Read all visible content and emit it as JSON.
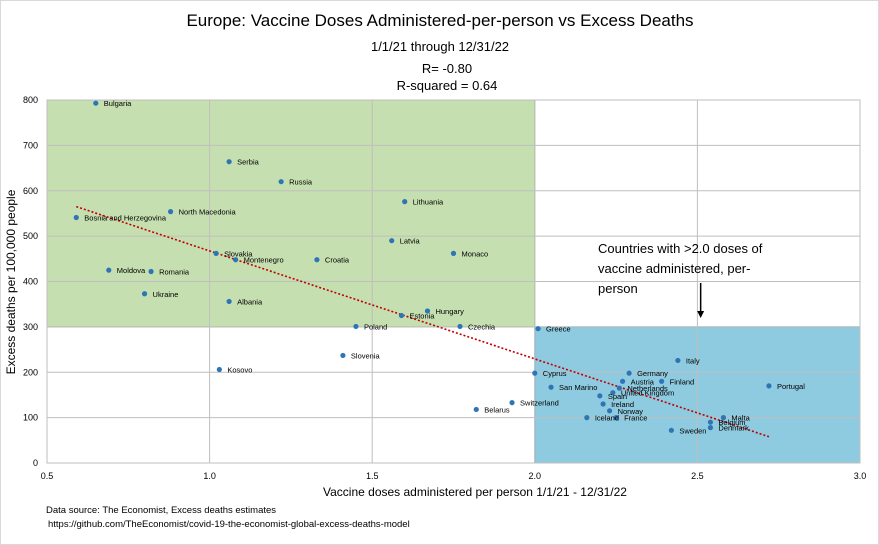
{
  "chart_data": {
    "type": "scatter",
    "title": "Europe: Vaccine Doses Administered-per-person vs Excess Deaths",
    "subtitle": "1/1/21 through 12/31/22",
    "stats": [
      "R= -0.80",
      "R-squared = 0.64"
    ],
    "xlabel": "Vaccine doses administered per person 1/1/21 - 12/31/22",
    "ylabel": "Excess deaths per 100,000 people",
    "xlim": [
      0.5,
      3.0
    ],
    "ylim": [
      0,
      800
    ],
    "xticks": [
      0.5,
      1.0,
      1.5,
      2.0,
      2.5,
      3.0
    ],
    "xtick_labels": [
      "0.5",
      "1.0",
      "1.5",
      "2.0",
      "2.5",
      "3.0"
    ],
    "yticks": [
      0,
      100,
      200,
      300,
      400,
      500,
      600,
      700,
      800
    ],
    "ytick_labels": [
      "0",
      "100",
      "200",
      "300",
      "400",
      "500",
      "600",
      "700",
      "800"
    ],
    "grid": true,
    "regions": [
      {
        "name": "high-deaths-low-vaccine",
        "x": [
          0.5,
          2.0
        ],
        "y": [
          300,
          800
        ],
        "color": "#c6dfb0",
        "border": "#8fb870"
      },
      {
        "name": "high-vaccine",
        "x": [
          2.0,
          3.0
        ],
        "y": [
          0,
          300
        ],
        "color": "#8ecbe0",
        "border": "#4f9ec0"
      }
    ],
    "trendline": {
      "x": [
        0.59,
        2.72
      ],
      "y": [
        565,
        58
      ],
      "color": "#c00000",
      "style": "dotted"
    },
    "marker_color": "#2e75b6",
    "points": [
      {
        "label": "Bulgaria",
        "x": 0.65,
        "y": 793
      },
      {
        "label": "Serbia",
        "x": 1.06,
        "y": 664
      },
      {
        "label": "Russia",
        "x": 1.22,
        "y": 620
      },
      {
        "label": "Lithuania",
        "x": 1.6,
        "y": 576
      },
      {
        "label": "North Macedonia",
        "x": 0.88,
        "y": 554
      },
      {
        "label": "Bosnia and Herzegovina",
        "x": 0.59,
        "y": 541
      },
      {
        "label": "Latvia",
        "x": 1.56,
        "y": 490
      },
      {
        "label": "Slovakia",
        "x": 1.02,
        "y": 462
      },
      {
        "label": "Monaco",
        "x": 1.75,
        "y": 462
      },
      {
        "label": "Montenegro",
        "x": 1.08,
        "y": 448
      },
      {
        "label": "Croatia",
        "x": 1.33,
        "y": 448
      },
      {
        "label": "Moldova",
        "x": 0.69,
        "y": 425
      },
      {
        "label": "Romania",
        "x": 0.82,
        "y": 422
      },
      {
        "label": "Ukraine",
        "x": 0.8,
        "y": 373
      },
      {
        "label": "Albania",
        "x": 1.06,
        "y": 356
      },
      {
        "label": "Hungary",
        "x": 1.67,
        "y": 335
      },
      {
        "label": "Estonia",
        "x": 1.59,
        "y": 325
      },
      {
        "label": "Poland",
        "x": 1.45,
        "y": 301
      },
      {
        "label": "Czechia",
        "x": 1.77,
        "y": 301
      },
      {
        "label": "Greece",
        "x": 2.01,
        "y": 296
      },
      {
        "label": "Slovenia",
        "x": 1.41,
        "y": 237
      },
      {
        "label": "Kosovo",
        "x": 1.03,
        "y": 206
      },
      {
        "label": "Italy",
        "x": 2.44,
        "y": 226
      },
      {
        "label": "Cyprus",
        "x": 2.0,
        "y": 198
      },
      {
        "label": "Germany",
        "x": 2.29,
        "y": 198
      },
      {
        "label": "Austria",
        "x": 2.27,
        "y": 180
      },
      {
        "label": "Finland",
        "x": 2.39,
        "y": 180
      },
      {
        "label": "Portugal",
        "x": 2.72,
        "y": 170
      },
      {
        "label": "San Marino",
        "x": 2.05,
        "y": 167
      },
      {
        "label": "Netherlands",
        "x": 2.26,
        "y": 165
      },
      {
        "label": "United Kingdom",
        "x": 2.24,
        "y": 155
      },
      {
        "label": "Spain",
        "x": 2.2,
        "y": 148
      },
      {
        "label": "Ireland",
        "x": 2.21,
        "y": 130
      },
      {
        "label": "Switzerland",
        "x": 1.93,
        "y": 133
      },
      {
        "label": "Norway",
        "x": 2.23,
        "y": 115
      },
      {
        "label": "Belarus",
        "x": 1.82,
        "y": 118
      },
      {
        "label": "France",
        "x": 2.25,
        "y": 100
      },
      {
        "label": "Iceland",
        "x": 2.16,
        "y": 100
      },
      {
        "label": "Malta",
        "x": 2.58,
        "y": 100
      },
      {
        "label": "Belgium",
        "x": 2.54,
        "y": 90
      },
      {
        "label": "Denmark",
        "x": 2.54,
        "y": 78
      },
      {
        "label": "Sweden",
        "x": 2.42,
        "y": 72
      }
    ]
  },
  "annotation": {
    "lines": [
      "Countries with >2.0 doses of",
      "vaccine administered, per-",
      "person"
    ],
    "arrow_target_x": 2.51
  },
  "source": {
    "line1": "Data source: The Economist, Excess deaths estimates",
    "line2": "https://github.com/TheEconomist/covid-19-the-economist-global-excess-deaths-model"
  }
}
